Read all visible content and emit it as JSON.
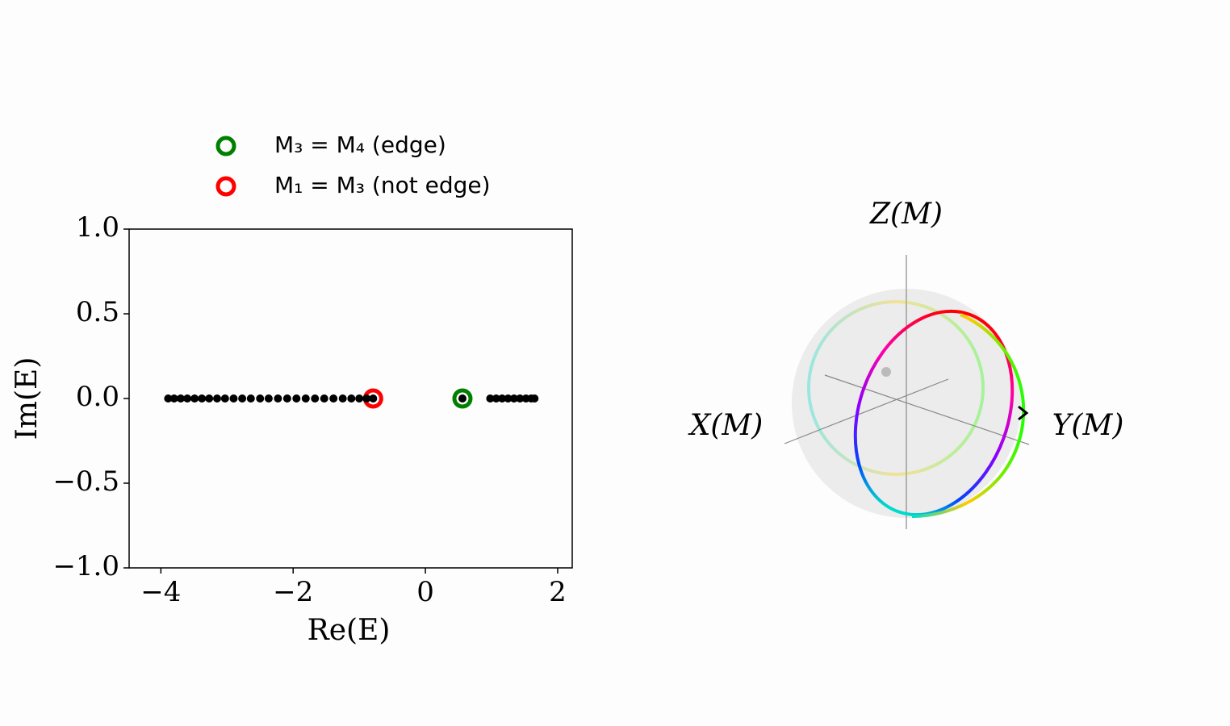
{
  "chart_data": [
    {
      "type": "scatter",
      "xlabel": "Re(E)",
      "ylabel": "Im(E)",
      "xlim": [
        -4.48,
        2.22
      ],
      "ylim": [
        -1,
        1
      ],
      "xticks": [
        {
          "value": -4,
          "label": "−4"
        },
        {
          "value": -2,
          "label": "−2"
        },
        0,
        2
      ],
      "yticks": [
        {
          "value": -1,
          "label": "−1.0"
        },
        {
          "value": -0.5,
          "label": "−0.5"
        },
        {
          "value": 0,
          "label": "0.0"
        },
        {
          "value": 0.5,
          "label": "0.5"
        },
        {
          "value": 1,
          "label": "1.0"
        }
      ],
      "series": [
        {
          "color": "#000000",
          "marker": "dot",
          "x": [
            -3.89,
            -3.8,
            -3.7,
            -3.6,
            -3.49,
            -3.38,
            -3.27,
            -3.15,
            -3.03,
            -2.9,
            -2.77,
            -2.64,
            -2.5,
            -2.37,
            -2.23,
            -2.09,
            -1.95,
            -1.81,
            -1.67,
            -1.53,
            -1.39,
            -1.25,
            -1.12,
            -1.0,
            -0.89,
            -0.79,
            0.56,
            0.98,
            1.07,
            1.16,
            1.25,
            1.34,
            1.43,
            1.52,
            1.6,
            1.65
          ],
          "values": [
            0,
            0,
            0,
            0,
            0,
            0,
            0,
            0,
            0,
            0,
            0,
            0,
            0,
            0,
            0,
            0,
            0,
            0,
            0,
            0,
            0,
            0,
            0,
            0,
            0,
            0,
            0,
            0,
            0,
            0,
            0,
            0,
            0,
            0,
            0,
            0
          ]
        },
        {
          "name": "M₃ = M₄ (edge)",
          "color": "#008000",
          "marker": "ring",
          "x": [
            0.56
          ],
          "values": [
            0
          ]
        },
        {
          "name": "M₁ = M₃ (not edge)",
          "color": "#ff0000",
          "marker": "ring",
          "x": [
            -0.79
          ],
          "values": [
            0
          ]
        }
      ]
    },
    {
      "type": "sphere",
      "xlabel": "X(M)",
      "ylabel": "Y(M)",
      "zlabel": "Z(M)"
    }
  ]
}
